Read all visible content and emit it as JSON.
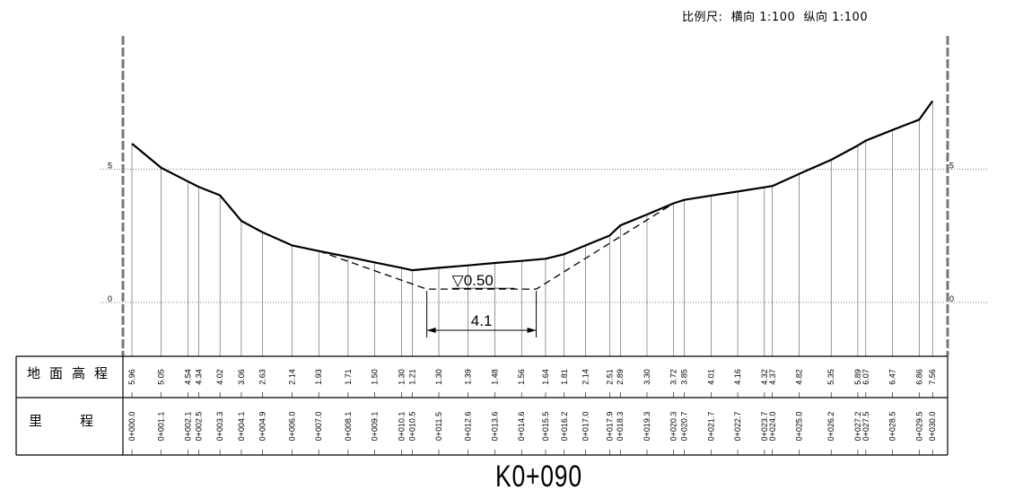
{
  "header": {
    "scale_label": "比例尺:  横向 1:100  纵向 1:100"
  },
  "section": {
    "title": "K0+090"
  },
  "table": {
    "row_ground_label": "地面高程",
    "row_station_label": "里程"
  },
  "axis": {
    "elev_ticks": [
      {
        "label": "5",
        "value": 5
      },
      {
        "label": "0",
        "value": 0
      }
    ]
  },
  "channel": {
    "water_label": "▽0.50",
    "width_label": "4.1",
    "bottom_elev": 0.5,
    "bottom_width": 4.1
  },
  "profile": [
    {
      "station": "0+000.0",
      "elev": "5.96"
    },
    {
      "station": "0+001.1",
      "elev": "5.05"
    },
    {
      "station": "0+002.1",
      "elev": "4.54"
    },
    {
      "station": "0+002.5",
      "elev": "4.34"
    },
    {
      "station": "0+003.3",
      "elev": "4.02"
    },
    {
      "station": "0+004.1",
      "elev": "3.06"
    },
    {
      "station": "0+004.9",
      "elev": "2.63"
    },
    {
      "station": "0+006.0",
      "elev": "2.14"
    },
    {
      "station": "0+007.0",
      "elev": "1.93"
    },
    {
      "station": "0+008.1",
      "elev": "1.71"
    },
    {
      "station": "0+009.1",
      "elev": "1.50"
    },
    {
      "station": "0+010.1",
      "elev": "1.30"
    },
    {
      "station": "0+010.5",
      "elev": "1.21"
    },
    {
      "station": "0+011.5",
      "elev": "1.30"
    },
    {
      "station": "0+012.6",
      "elev": "1.39"
    },
    {
      "station": "0+013.6",
      "elev": "1.48"
    },
    {
      "station": "0+014.6",
      "elev": "1.56"
    },
    {
      "station": "0+015.5",
      "elev": "1.64"
    },
    {
      "station": "0+016.2",
      "elev": "1.81"
    },
    {
      "station": "0+017.0",
      "elev": "2.14"
    },
    {
      "station": "0+017.9",
      "elev": "2.51"
    },
    {
      "station": "0+018.3",
      "elev": "2.89"
    },
    {
      "station": "0+019.3",
      "elev": "3.30"
    },
    {
      "station": "0+020.3",
      "elev": "3.72"
    },
    {
      "station": "0+020.7",
      "elev": "3.85"
    },
    {
      "station": "0+021.7",
      "elev": "4.01"
    },
    {
      "station": "0+022.7",
      "elev": "4.16"
    },
    {
      "station": "0+023.7",
      "elev": "4.32"
    },
    {
      "station": "0+024.0",
      "elev": "4.37"
    },
    {
      "station": "0+025.0",
      "elev": "4.82"
    },
    {
      "station": "0+026.2",
      "elev": "5.35"
    },
    {
      "station": "0+027.2",
      "elev": "5.89"
    },
    {
      "station": "0+027.5",
      "elev": "6.07"
    },
    {
      "station": "0+028.5",
      "elev": "6.47"
    },
    {
      "station": "0+029.5",
      "elev": "6.86"
    },
    {
      "station": "0+030.0",
      "elev": "7.56"
    }
  ]
}
